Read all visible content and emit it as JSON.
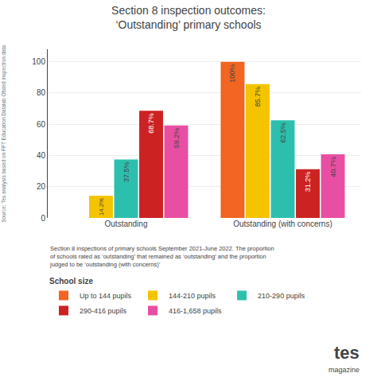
{
  "chart_data": {
    "type": "bar",
    "title": "Section 8 inspection outcomes:",
    "subtitle": "‘Outstanding’ primary schools",
    "categories": [
      "Outstanding",
      "Outstanding (with concerns)"
    ],
    "series": [
      {
        "name": "Up to 144 pupils",
        "color": "#f26522",
        "values": [
          null,
          100.0
        ],
        "value_labels": [
          null,
          "100%"
        ]
      },
      {
        "name": "144-210 pupils",
        "color": "#f5c400",
        "values": [
          14.2,
          85.7
        ],
        "value_labels": [
          "14.2%",
          "85.7%"
        ]
      },
      {
        "name": "210-290 pupils",
        "color": "#2dbfad",
        "values": [
          37.5,
          62.5
        ],
        "value_labels": [
          "37.5%",
          "62.5%"
        ]
      },
      {
        "name": "290-416 pupils",
        "color": "#cc2222",
        "values": [
          68.7,
          31.2
        ],
        "value_labels": [
          "68.7%",
          "31.2%"
        ]
      },
      {
        "name": "416-1,658 pupils",
        "color": "#e84fa3",
        "values": [
          59.2,
          40.7
        ],
        "value_labels": [
          "59.2%",
          "40.7%"
        ]
      }
    ],
    "ylim": [
      0,
      108
    ],
    "yticks": [
      0,
      20,
      40,
      60,
      80,
      100
    ],
    "grid": true,
    "data_labels": true,
    "legend": "bottom",
    "legend_title": "School size",
    "annotations": [
      "Section 8 inspections of primary schools September 2021-June 2022. The proportion\nof schools rated as ‘outstanding’ that remained as ‘outstanding’ and the proportion\njudged to be ‘outstanding (with concerns)’",
      "Source: Tes analysis based on FFT Education Datalab Ofsted inspection data",
      "tes",
      "magazine"
    ]
  }
}
